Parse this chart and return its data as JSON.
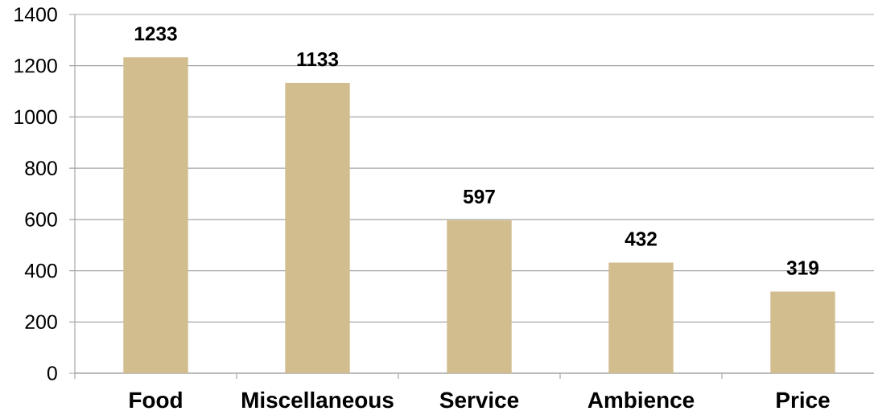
{
  "chart_data": {
    "type": "bar",
    "categories": [
      "Food",
      "Miscellaneous",
      "Service",
      "Ambience",
      "Price"
    ],
    "values": [
      1233,
      1133,
      597,
      432,
      319
    ],
    "color": "#d2bd8e",
    "ylim": [
      0,
      1400
    ],
    "yticks": [
      0,
      200,
      400,
      600,
      800,
      1000,
      1200,
      1400
    ],
    "grid": "y",
    "data_labels": true
  }
}
